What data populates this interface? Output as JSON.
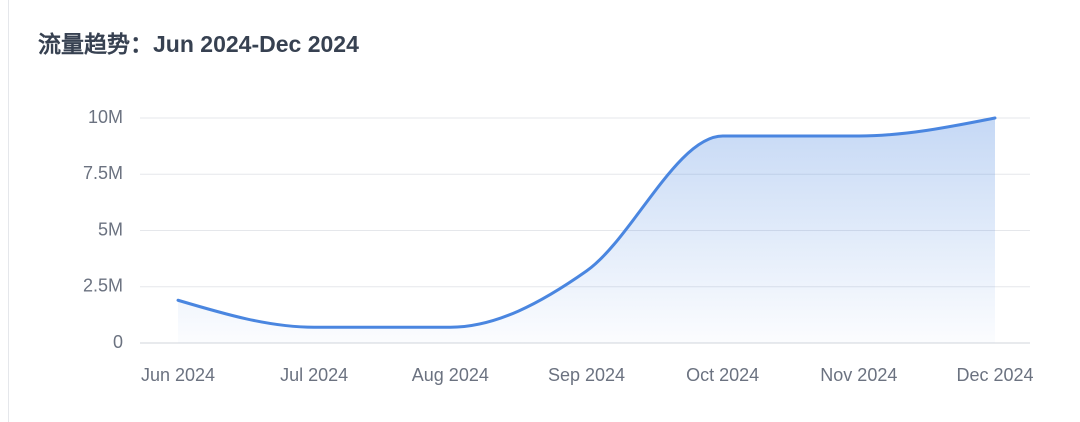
{
  "chart_data": {
    "type": "line",
    "title": "流量趋势：Jun 2024-Dec 2024",
    "categories": [
      "Jun 2024",
      "Jul 2024",
      "Aug 2024",
      "Sep 2024",
      "Oct 2024",
      "Nov 2024",
      "Dec 2024"
    ],
    "series": [
      {
        "name": "流量",
        "color": "#4a86e0",
        "values": [
          1900000,
          700000,
          700000,
          3200000,
          9200000,
          9200000,
          10000000
        ]
      }
    ],
    "ylim": [
      0,
      10000000
    ],
    "yticks": [
      0,
      {
        "value": 2500000,
        "label": "2.5M"
      },
      {
        "value": 5000000,
        "label": "5M"
      },
      {
        "value": 7500000,
        "label": "7.5M"
      },
      {
        "value": 10000000,
        "label": "10M"
      }
    ],
    "grid": true,
    "smooth": true,
    "area": true
  }
}
